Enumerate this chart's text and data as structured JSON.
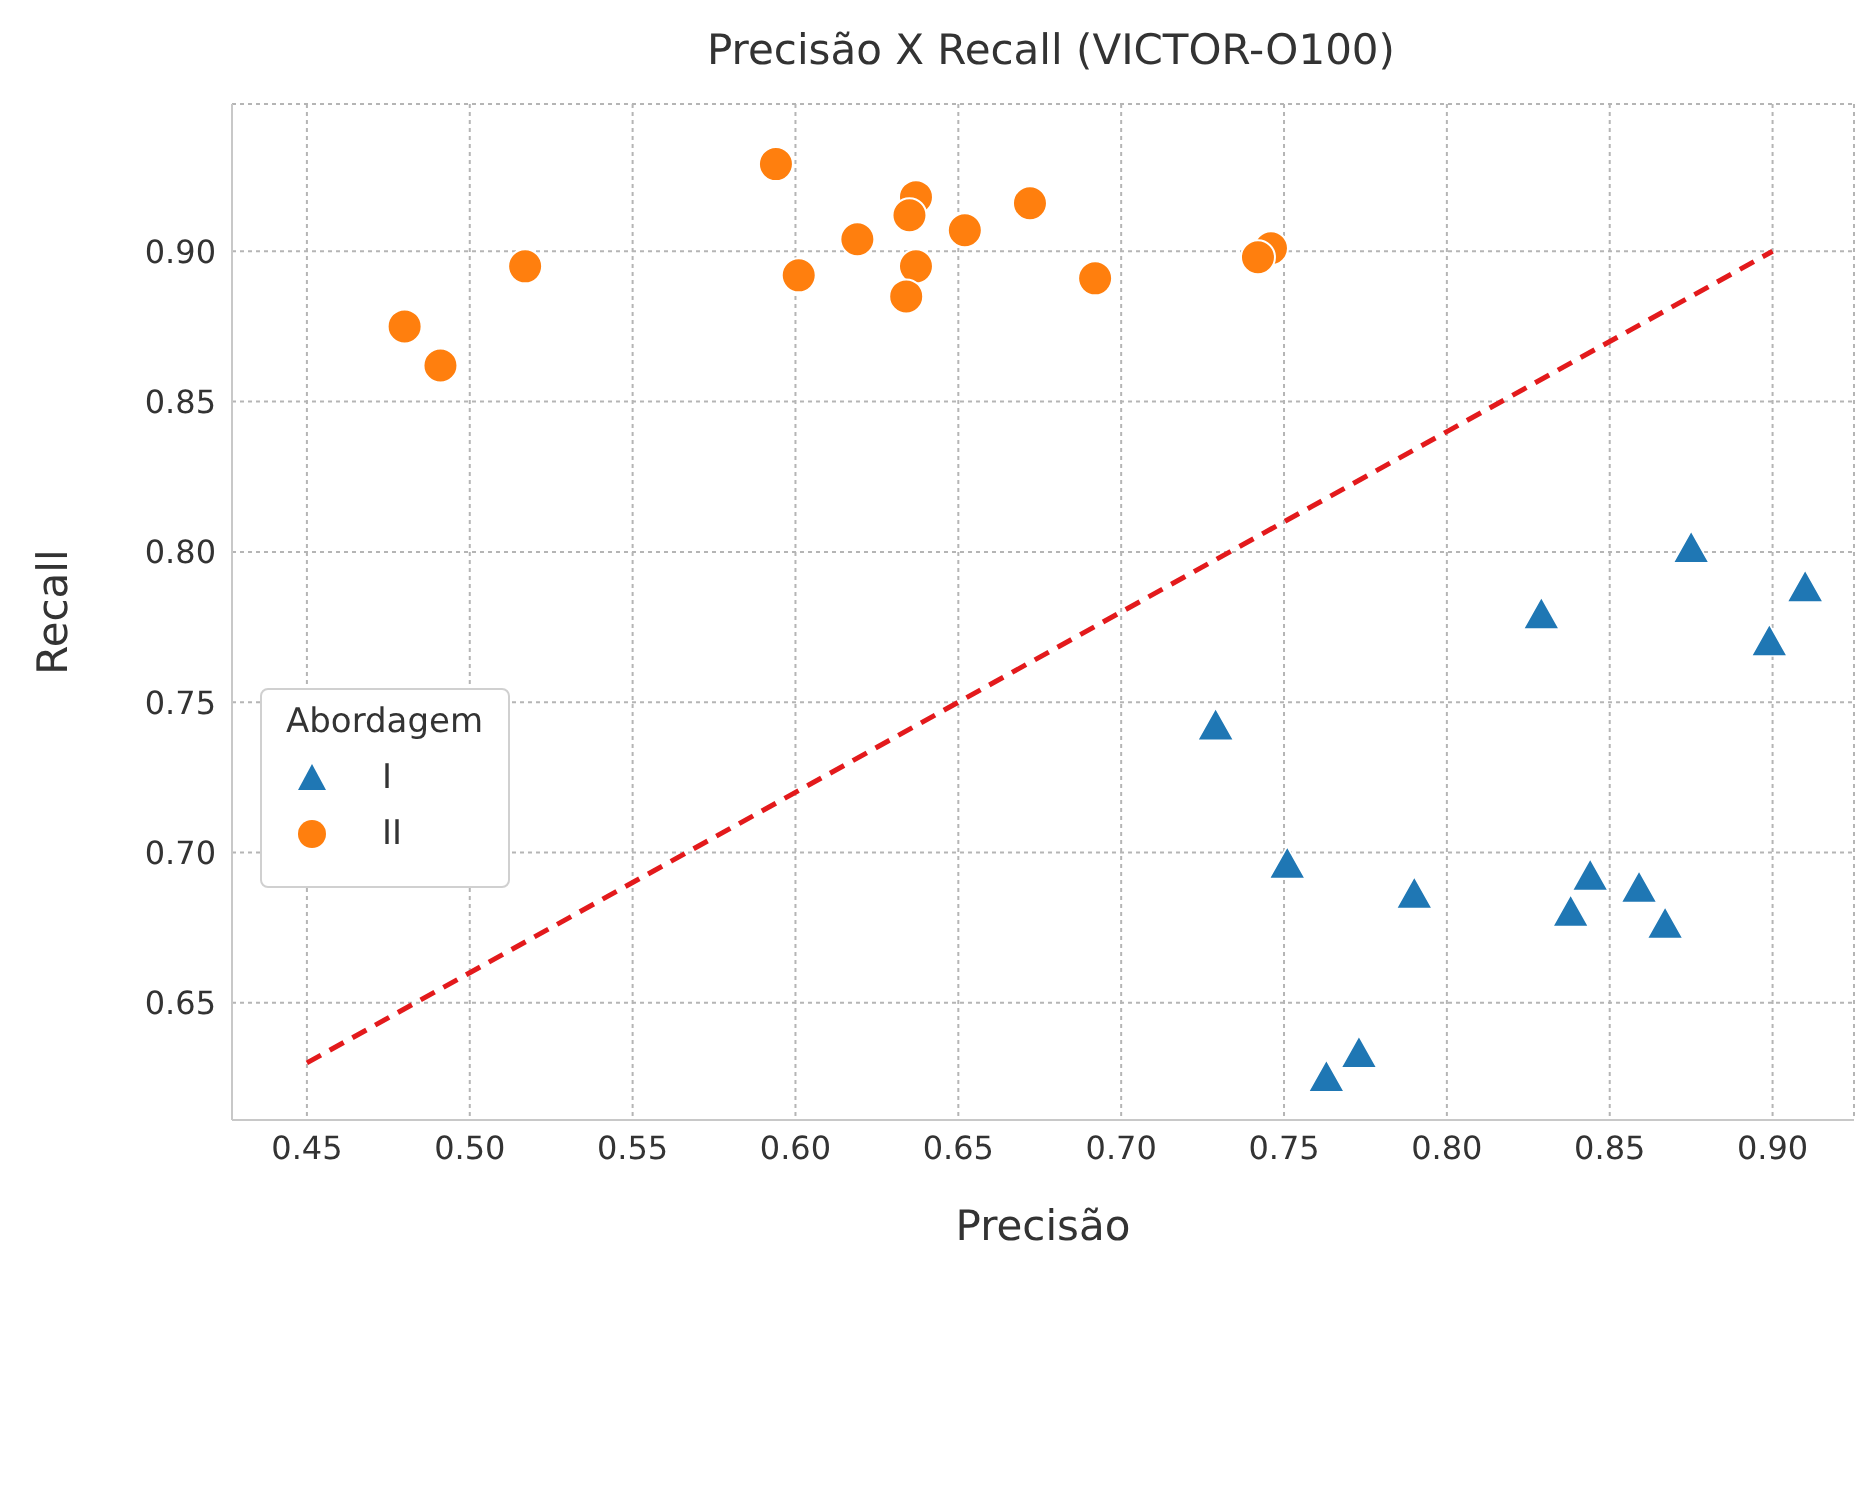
{
  "chart_data": {
    "type": "scatter",
    "title": "Precisão X Recall (VICTOR-O100)",
    "xlabel": "Precisão",
    "ylabel": "Recall",
    "legend_title": "Abordagem",
    "xlim": [
      0.427,
      0.925
    ],
    "ylim": [
      0.611,
      0.949
    ],
    "xticks": [
      0.45,
      {
        "value": 0.5,
        "label": "0.50"
      },
      0.55,
      {
        "value": 0.6,
        "label": "0.60"
      },
      0.65,
      {
        "value": 0.7,
        "label": "0.70"
      },
      0.75,
      {
        "value": 0.8,
        "label": "0.80"
      },
      0.85,
      {
        "value": 0.9,
        "label": "0.90"
      }
    ],
    "yticks": [
      0.65,
      {
        "value": 0.7,
        "label": "0.70"
      },
      0.75,
      {
        "value": 0.8,
        "label": "0.80"
      },
      0.85,
      {
        "value": 0.9,
        "label": "0.90"
      }
    ],
    "grid": true,
    "legend": "center left",
    "series": [
      {
        "name": "I",
        "type": "scatter",
        "marker": "triangle",
        "color": "#1f77b4",
        "x": [
          0.875,
          0.91,
          0.899,
          0.829,
          0.729,
          0.751,
          0.79,
          0.844,
          0.838,
          0.859,
          0.867,
          0.773,
          0.763
        ],
        "values": [
          0.801,
          0.788,
          0.77,
          0.779,
          0.742,
          0.696,
          0.686,
          0.692,
          0.68,
          0.688,
          0.676,
          0.633,
          0.625
        ]
      },
      {
        "name": "II",
        "type": "scatter",
        "marker": "circle",
        "color": "#ff7f0e",
        "x": [
          0.594,
          0.637,
          0.635,
          0.672,
          0.652,
          0.619,
          0.517,
          0.601,
          0.637,
          0.634,
          0.692,
          0.746,
          0.742,
          0.48,
          0.491
        ],
        "values": [
          0.929,
          0.918,
          0.912,
          0.916,
          0.907,
          0.904,
          0.895,
          0.892,
          0.895,
          0.885,
          0.891,
          0.901,
          0.898,
          0.875,
          0.862
        ]
      },
      {
        "type": "line",
        "line_style": "dashed",
        "marker": "none",
        "color": "#e31a1c",
        "x": [
          0.45,
          0.9
        ],
        "values": [
          0.63,
          0.9
        ]
      }
    ]
  }
}
